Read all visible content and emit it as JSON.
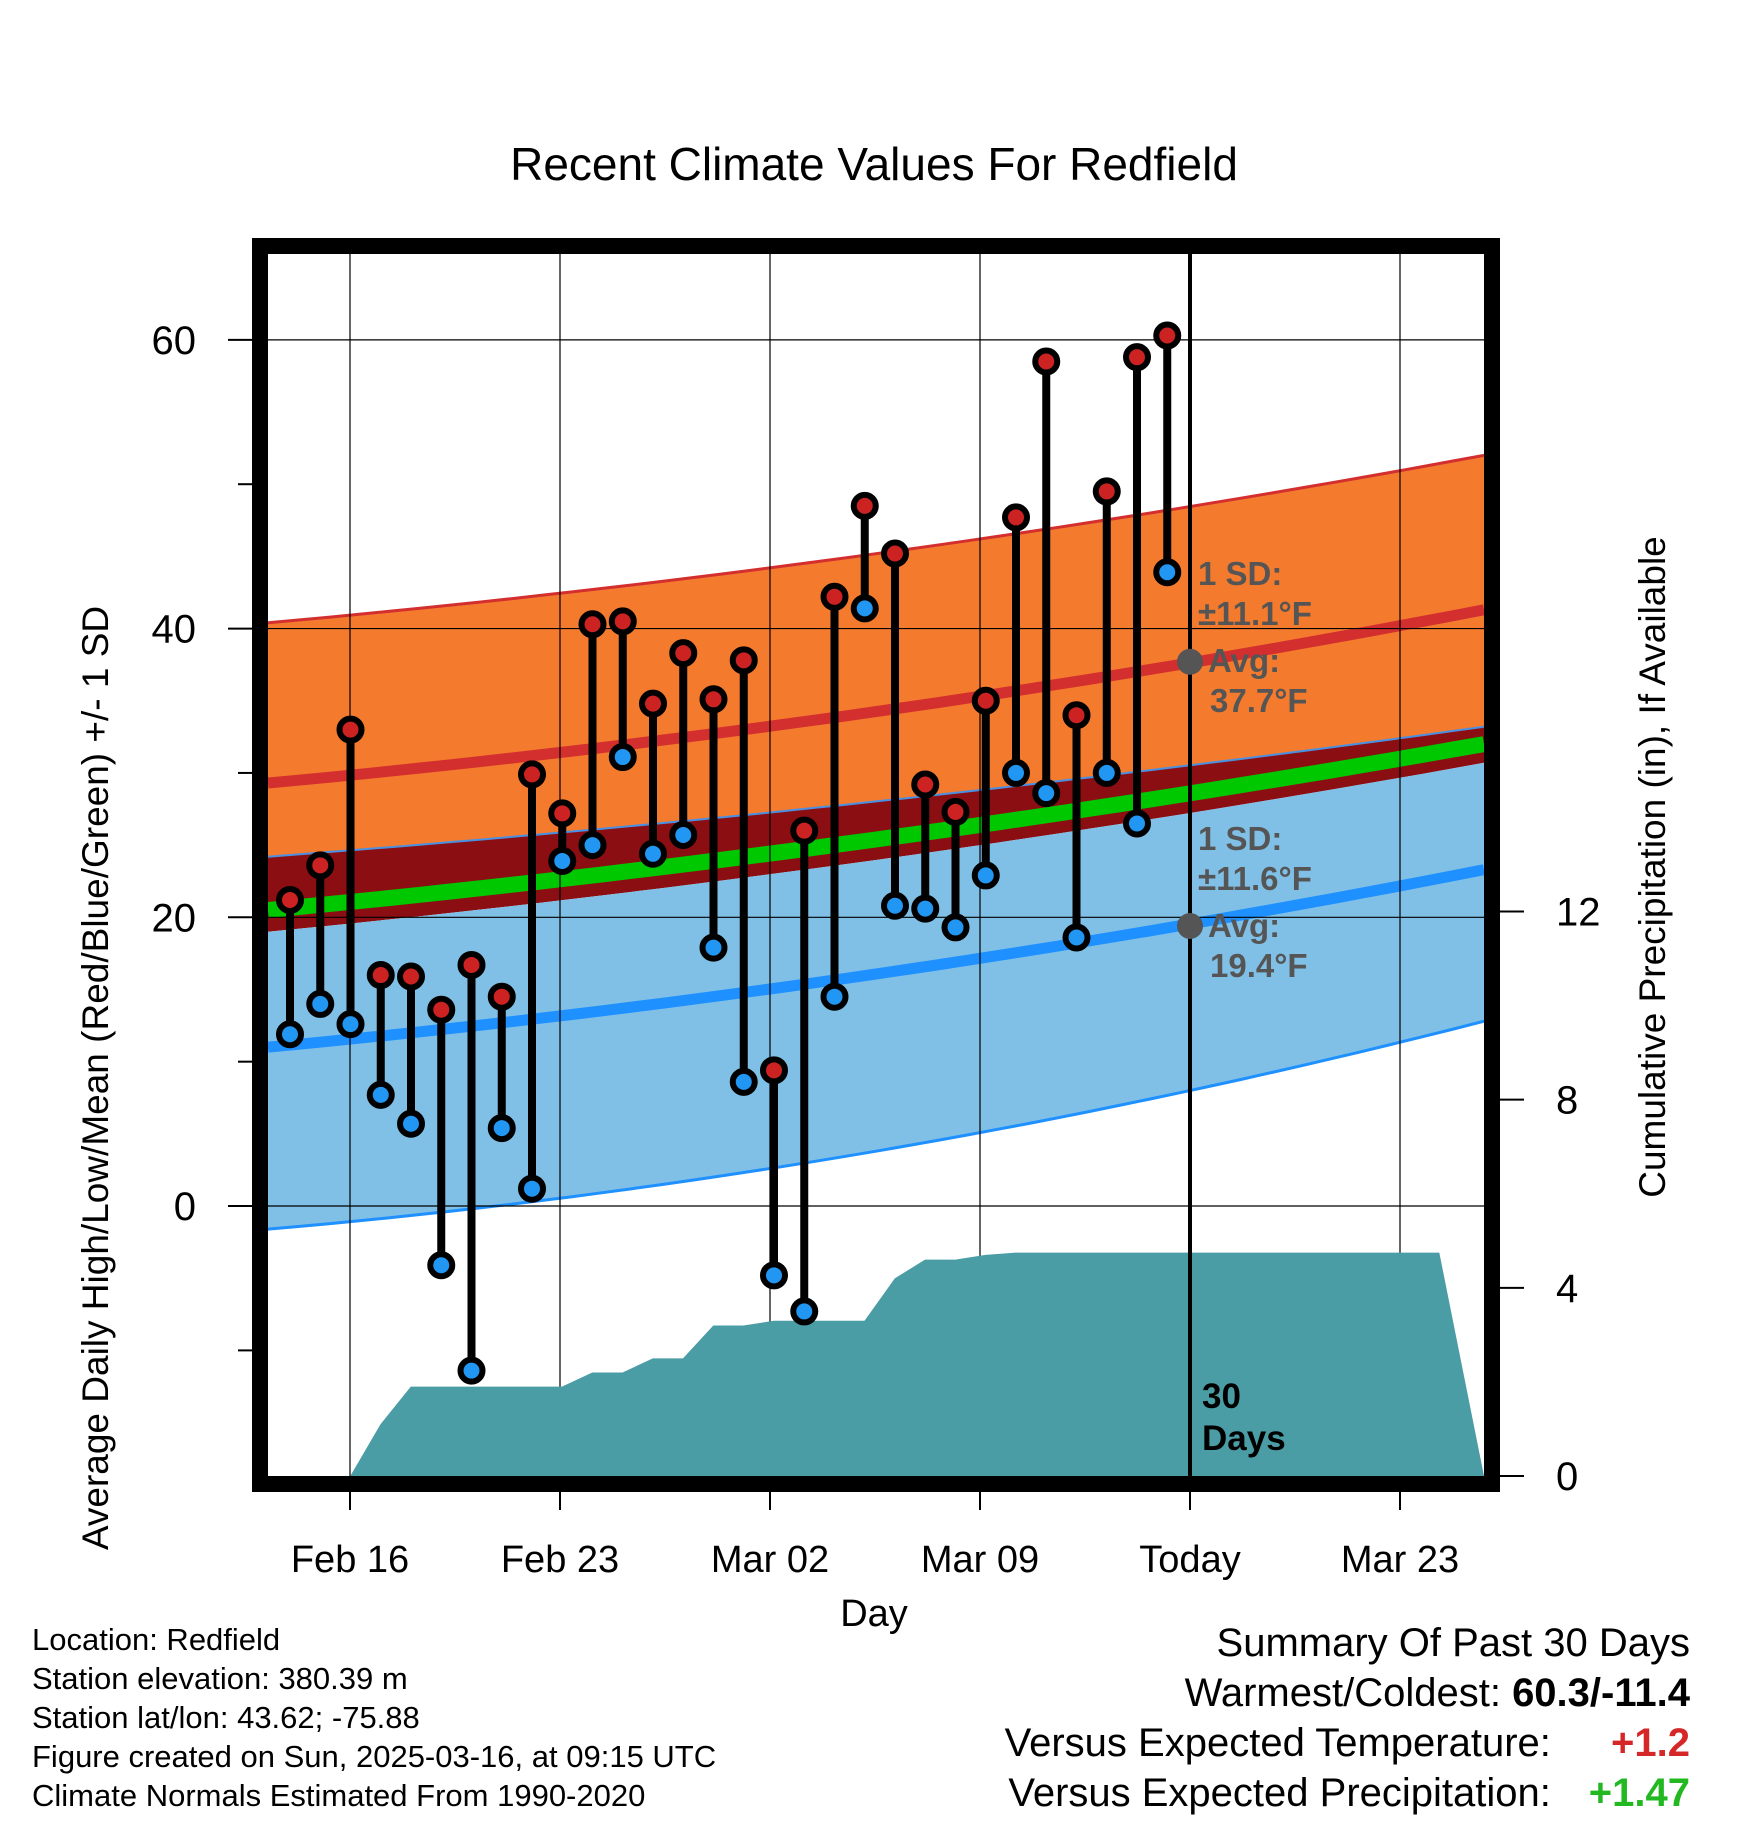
{
  "title": "Recent Climate Values For Redfield",
  "chart_data": {
    "type": "line",
    "title": "Recent Climate Values For Redfield",
    "xlabel": "Day",
    "ylabel": "Average Daily High/Low/Mean (Red/Blue/Green) +/- 1 SD",
    "ylabel_right": "Cumulative Precipitation (in), If Available",
    "x_ticks": [
      "Feb 16",
      "Feb 23",
      "Mar 02",
      "Mar 09",
      "Today",
      "Mar 23"
    ],
    "y_ticks": [
      0,
      20,
      40,
      60
    ],
    "y_right_ticks": [
      0,
      4,
      8,
      12
    ],
    "ylim": [
      -18.7,
      66.5
    ],
    "ylim_right": [
      0,
      25.0
    ],
    "grid": true,
    "days": [
      "Feb 14",
      "Feb 15",
      "Feb 16",
      "Feb 17",
      "Feb 18",
      "Feb 19",
      "Feb 20",
      "Feb 21",
      "Feb 22",
      "Feb 23",
      "Feb 24",
      "Feb 25",
      "Feb 26",
      "Feb 27",
      "Feb 28",
      "Mar 01",
      "Mar 02",
      "Mar 03",
      "Mar 04",
      "Mar 05",
      "Mar 06",
      "Mar 07",
      "Mar 08",
      "Mar 09",
      "Mar 10",
      "Mar 11",
      "Mar 12",
      "Mar 13",
      "Mar 14",
      "Mar 15"
    ],
    "series": [
      {
        "name": "High",
        "color": "#d62728",
        "values": [
          21.2,
          23.6,
          33.0,
          16.0,
          15.9,
          13.6,
          16.7,
          14.5,
          29.9,
          27.2,
          40.3,
          40.5,
          34.8,
          38.3,
          35.1,
          37.8,
          9.4,
          26.0,
          42.2,
          48.5,
          45.2,
          29.2,
          27.3,
          35.0,
          47.7,
          58.5,
          34.0,
          49.5,
          58.8,
          60.3
        ]
      },
      {
        "name": "Low",
        "color": "#1e90ff",
        "values": [
          11.9,
          14.0,
          12.6,
          7.7,
          5.7,
          -4.1,
          -11.4,
          5.4,
          1.2,
          23.9,
          25.0,
          31.1,
          24.4,
          25.7,
          17.9,
          8.6,
          -4.8,
          -7.3,
          14.5,
          41.4,
          20.8,
          20.6,
          19.3,
          22.9,
          30.0,
          28.6,
          18.6,
          30.0,
          26.5,
          43.9
        ]
      }
    ],
    "normals": {
      "high_avg_start": 29.3,
      "high_avg_end": 41.3,
      "high_plus_sd_start": 40.4,
      "high_plus_sd_end": 52.0,
      "high_minus_sd_start": 24.2,
      "high_minus_sd_end": 33.2,
      "mean_start": 20.5,
      "mean_end": 32.0,
      "low_avg_start": 11.0,
      "low_avg_end": 23.3,
      "low_plus_sd_start": 19.0,
      "low_plus_sd_end": 30.7,
      "low_minus_sd_start": -1.6,
      "low_minus_sd_end": 12.8
    },
    "precipitation": {
      "x": [
        0,
        1,
        2,
        3,
        4,
        5,
        6,
        7,
        8,
        9,
        10,
        11,
        12,
        13,
        14,
        15,
        16,
        17,
        18,
        19,
        20,
        21,
        22,
        23,
        24,
        25,
        26,
        27,
        28,
        29,
        30,
        37
      ],
      "y": [
        0,
        0,
        1.1,
        1.9,
        1.9,
        1.9,
        1.9,
        1.9,
        1.9,
        2.2,
        2.2,
        2.5,
        2.5,
        3.2,
        3.2,
        3.3,
        3.3,
        3.3,
        3.3,
        4.2,
        4.6,
        4.6,
        4.7,
        4.75,
        4.75,
        4.75,
        4.75,
        4.75,
        4.75,
        4.75,
        4.75,
        4.75
      ]
    },
    "annotations": {
      "high_sd_label": "1 SD:",
      "high_sd_value": "±11.1°F",
      "high_avg_label": "Avg:",
      "high_avg_value": "37.7°F",
      "low_sd_label": "1 SD:",
      "low_sd_value": "±11.6°F",
      "low_avg_label": "Avg:",
      "low_avg_value": "19.4°F",
      "period_number": "30",
      "period_unit": "Days"
    },
    "colors": {
      "high_band": "#f47a2e",
      "high_line": "#d32f2f",
      "mean_band": "#8b0e12",
      "mean_line": "#00c800",
      "low_band": "#80c0e6",
      "low_line": "#1e90ff",
      "precip": "#4a9ca5",
      "marker_high": "#cc2222",
      "marker_low": "#2196f3"
    }
  },
  "footer": {
    "location": "Location: Redfield",
    "elevation": "Station elevation: 380.39 m",
    "latlon": "Station lat/lon: 43.62; -75.88",
    "created": "Figure created on Sun, 2025-03-16, at 09:15 UTC",
    "normals": "Climate Normals Estimated From 1990-2020"
  },
  "summary": {
    "heading": "Summary Of Past 30 Days",
    "warm_cold_label": "Warmest/Coldest:",
    "warm_cold_value": "60.3/-11.4",
    "temp_label": "Versus Expected Temperature:",
    "temp_value": "+1.2",
    "temp_color": "#d62728",
    "precip_label": "Versus Expected Precipitation:",
    "precip_value": "+1.47",
    "precip_color": "#22b822"
  }
}
